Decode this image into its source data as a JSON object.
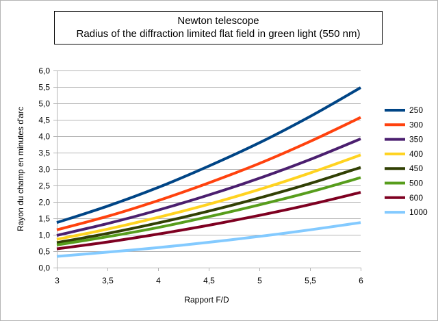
{
  "chart_data": {
    "type": "line",
    "title": "Newton telescope",
    "subtitle": "Radius of the diffraction limited flat field in green light (550 nm)",
    "xlabel": "Rapport F/D",
    "ylabel": "Rayon du champ en minutes d'arc",
    "xlim": [
      3,
      6
    ],
    "ylim": [
      0,
      6
    ],
    "x_ticks": [
      {
        "value": 3,
        "label": "3"
      },
      {
        "value": 3.5,
        "label": "3,5"
      },
      {
        "value": 4,
        "label": "4"
      },
      {
        "value": 4.5,
        "label": "4,5"
      },
      {
        "value": 5,
        "label": "5"
      },
      {
        "value": 5.5,
        "label": "5,5"
      },
      {
        "value": 6,
        "label": "6"
      }
    ],
    "y_ticks": [
      {
        "value": 0,
        "label": "0,0"
      },
      {
        "value": 0.5,
        "label": "0,5"
      },
      {
        "value": 1,
        "label": "1,0"
      },
      {
        "value": 1.5,
        "label": "1,5"
      },
      {
        "value": 2,
        "label": "2,0"
      },
      {
        "value": 2.5,
        "label": "2,5"
      },
      {
        "value": 3,
        "label": "3,0"
      },
      {
        "value": 3.5,
        "label": "3,5"
      },
      {
        "value": 4,
        "label": "4,0"
      },
      {
        "value": 4.5,
        "label": "4,5"
      },
      {
        "value": 5,
        "label": "5,0"
      },
      {
        "value": 5.5,
        "label": "5,5"
      },
      {
        "value": 6,
        "label": "6,0"
      }
    ],
    "grid": "horizontal",
    "legend_position": "right",
    "x": [
      3,
      3.5,
      4,
      4.5,
      5,
      5.5,
      6
    ],
    "series": [
      {
        "name": "250",
        "color": "#004586",
        "values": [
          1.37,
          1.87,
          2.44,
          3.09,
          3.8,
          4.6,
          5.48
        ]
      },
      {
        "name": "300",
        "color": "#ff420e",
        "values": [
          1.15,
          1.56,
          2.04,
          2.58,
          3.17,
          3.84,
          4.57
        ]
      },
      {
        "name": "350",
        "color": "#4b1f6f",
        "values": [
          0.98,
          1.34,
          1.75,
          2.21,
          2.72,
          3.29,
          3.92
        ]
      },
      {
        "name": "400",
        "color": "#ffd320",
        "values": [
          0.86,
          1.17,
          1.53,
          1.93,
          2.38,
          2.88,
          3.43
        ]
      },
      {
        "name": "450",
        "color": "#314004",
        "values": [
          0.76,
          1.04,
          1.36,
          1.72,
          2.12,
          2.56,
          3.05
        ]
      },
      {
        "name": "500",
        "color": "#579d1c",
        "values": [
          0.69,
          0.94,
          1.22,
          1.55,
          1.91,
          2.3,
          2.74
        ]
      },
      {
        "name": "600",
        "color": "#7e0021",
        "values": [
          0.57,
          0.78,
          1.02,
          1.29,
          1.59,
          1.92,
          2.29
        ]
      },
      {
        "name": "1000",
        "color": "#83caff",
        "values": [
          0.34,
          0.47,
          0.61,
          0.77,
          0.95,
          1.15,
          1.37
        ]
      }
    ]
  }
}
